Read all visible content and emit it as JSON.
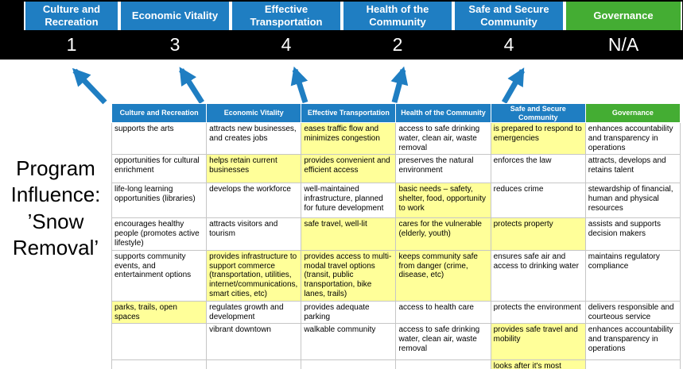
{
  "colors": {
    "blue": "#1F7EC2",
    "green": "#44AD33",
    "highlight": "#FFFF99",
    "arrow": "#1F7EC2",
    "band": "#000000"
  },
  "scoreboard": {
    "columns": [
      {
        "label": "Culture and Recreation",
        "score": "1",
        "accent": "blue"
      },
      {
        "label": "Economic Vitality",
        "score": "3",
        "accent": "blue"
      },
      {
        "label": "Effective Transportation",
        "score": "4",
        "accent": "blue"
      },
      {
        "label": "Health of the Community",
        "score": "2",
        "accent": "blue"
      },
      {
        "label": "Safe and Secure Community",
        "score": "4",
        "accent": "blue"
      },
      {
        "label": "Governance",
        "score": "N/A",
        "accent": "green"
      }
    ]
  },
  "program_title": {
    "lines": [
      "Program",
      "Influence:",
      "’Snow",
      "Removal’"
    ]
  },
  "table": {
    "columns": [
      {
        "label": "Culture and Recreation",
        "accent": "blue"
      },
      {
        "label": "Economic Vitality",
        "accent": "blue"
      },
      {
        "label": "Effective Transportation",
        "accent": "blue"
      },
      {
        "label": "Health of the Community",
        "accent": "blue"
      },
      {
        "label": "Safe and Secure Community",
        "accent": "blue"
      },
      {
        "label": "Governance",
        "accent": "green"
      }
    ],
    "rows": [
      [
        {
          "text": "supports the arts",
          "highlight": false
        },
        {
          "text": "attracts new businesses, and creates jobs",
          "highlight": false
        },
        {
          "text": "eases traffic flow and minimizes congestion",
          "highlight": true
        },
        {
          "text": "access to safe drinking water, clean air, waste removal",
          "highlight": false
        },
        {
          "text": "is prepared to respond to emergencies",
          "highlight": true
        },
        {
          "text": "enhances accountability and transparency in operations",
          "highlight": false
        }
      ],
      [
        {
          "text": "opportunities for cultural enrichment",
          "highlight": false
        },
        {
          "text": "helps retain current businesses",
          "highlight": true
        },
        {
          "text": "provides convenient and efficient access",
          "highlight": true
        },
        {
          "text": "preserves the natural environment",
          "highlight": false
        },
        {
          "text": "enforces the law",
          "highlight": false
        },
        {
          "text": "attracts, develops and retains talent",
          "highlight": false
        }
      ],
      [
        {
          "text": "life-long learning opportunities (libraries)",
          "highlight": false
        },
        {
          "text": "develops the workforce",
          "highlight": false
        },
        {
          "text": "well-maintained infrastructure, planned for future development",
          "highlight": false
        },
        {
          "text": "basic needs – safety, shelter, food, opportunity to work",
          "highlight": true
        },
        {
          "text": "reduces crime",
          "highlight": false
        },
        {
          "text": "stewardship of financial, human and physical resources",
          "highlight": false
        }
      ],
      [
        {
          "text": "encourages healthy people (promotes active lifestyle)",
          "highlight": false
        },
        {
          "text": "attracts visitors and tourism",
          "highlight": false
        },
        {
          "text": "safe travel, well-lit",
          "highlight": true
        },
        {
          "text": "cares for the vulnerable (elderly, youth)",
          "highlight": true
        },
        {
          "text": "protects property",
          "highlight": true
        },
        {
          "text": "assists and supports decision makers",
          "highlight": false
        }
      ],
      [
        {
          "text": "supports community events, and entertainment options",
          "highlight": false
        },
        {
          "text": "provides infrastructure to support commerce (transportation, utilities, internet/communications, smart cities, etc)",
          "highlight": true
        },
        {
          "text": "provides access to multi-modal travel options (transit, public transportation, bike lanes, trails)",
          "highlight": true
        },
        {
          "text": "keeps community safe from danger (crime, disease, etc)",
          "highlight": true
        },
        {
          "text": "ensures safe air and access to drinking water",
          "highlight": false
        },
        {
          "text": "maintains regulatory compliance",
          "highlight": false
        }
      ],
      [
        {
          "text": "parks, trails, open spaces",
          "highlight": true
        },
        {
          "text": "regulates growth and development",
          "highlight": false
        },
        {
          "text": "provides adequate parking",
          "highlight": false
        },
        {
          "text": "access to health care",
          "highlight": false
        },
        {
          "text": "protects the environment",
          "highlight": false
        },
        {
          "text": "delivers responsible and courteous service",
          "highlight": false
        }
      ],
      [
        {
          "text": "",
          "highlight": false
        },
        {
          "text": "vibrant downtown",
          "highlight": false
        },
        {
          "text": "walkable community",
          "highlight": false
        },
        {
          "text": "access to safe drinking water, clean air, waste removal",
          "highlight": false
        },
        {
          "text": "provides safe travel and mobility",
          "highlight": true
        },
        {
          "text": "enhances accountability and transparency in operations",
          "highlight": false
        }
      ],
      [
        {
          "text": "",
          "highlight": false
        },
        {
          "text": "",
          "highlight": false
        },
        {
          "text": "",
          "highlight": false
        },
        {
          "text": "",
          "highlight": false
        },
        {
          "text": "looks after it's most vulnerable",
          "highlight": true
        },
        {
          "text": "",
          "highlight": false
        }
      ]
    ]
  }
}
